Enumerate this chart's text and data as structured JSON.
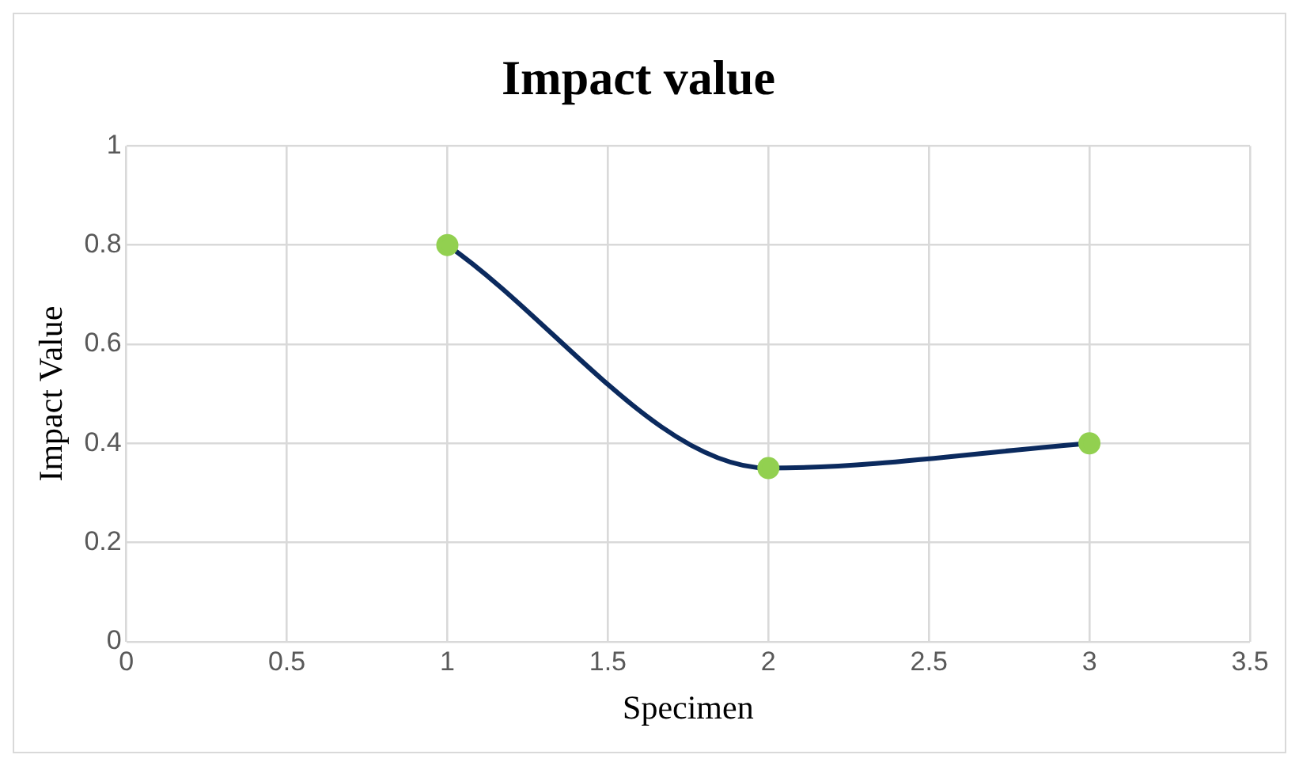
{
  "chart_data": {
    "type": "line",
    "title": "Impact value",
    "xlabel": "Specimen",
    "ylabel": "Impact Value",
    "series": [
      {
        "x": [
          1,
          2,
          3
        ],
        "values": [
          0.8,
          0.35,
          0.4
        ],
        "color": "#0b2a5e",
        "colors": [
          "#92d050",
          "#92d050",
          "#92d050"
        ]
      }
    ],
    "xlim": [
      0,
      3.5
    ],
    "xticks": [
      0,
      0.5,
      1,
      1.5,
      2,
      2.5,
      3,
      3.5
    ],
    "ylim": [
      0,
      1
    ],
    "yticks": [
      0,
      0.2,
      0.4,
      0.6,
      0.8,
      1
    ],
    "grid": true,
    "legend": false,
    "marker": "circle",
    "line_style": "solid"
  }
}
